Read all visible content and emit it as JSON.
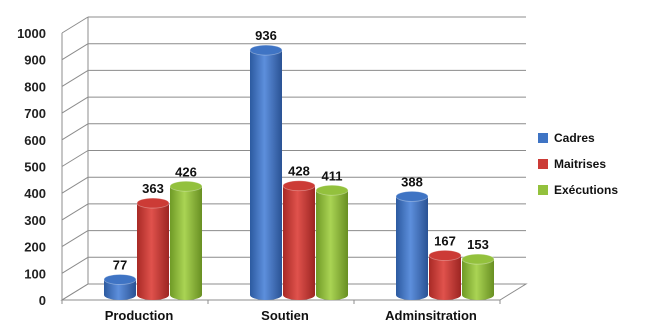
{
  "chart_data": {
    "type": "bar",
    "categories": [
      "Production",
      "Soutien",
      "Adminsitration"
    ],
    "series": [
      {
        "name": "Cadres",
        "values": [
          77,
          936,
          388
        ]
      },
      {
        "name": "Maitrises",
        "values": [
          363,
          428,
          167
        ]
      },
      {
        "name": "Exécutions",
        "values": [
          426,
          411,
          153
        ]
      }
    ],
    "ylim": [
      0,
      1000
    ],
    "yticks": [
      0,
      100,
      200,
      300,
      400,
      500,
      600,
      700,
      800,
      900,
      1000
    ],
    "grid": true,
    "legend_position": "right",
    "colors": [
      "#3f74c4",
      "#cc3b36",
      "#93c13d"
    ],
    "title": "",
    "xlabel": "",
    "ylabel": ""
  }
}
